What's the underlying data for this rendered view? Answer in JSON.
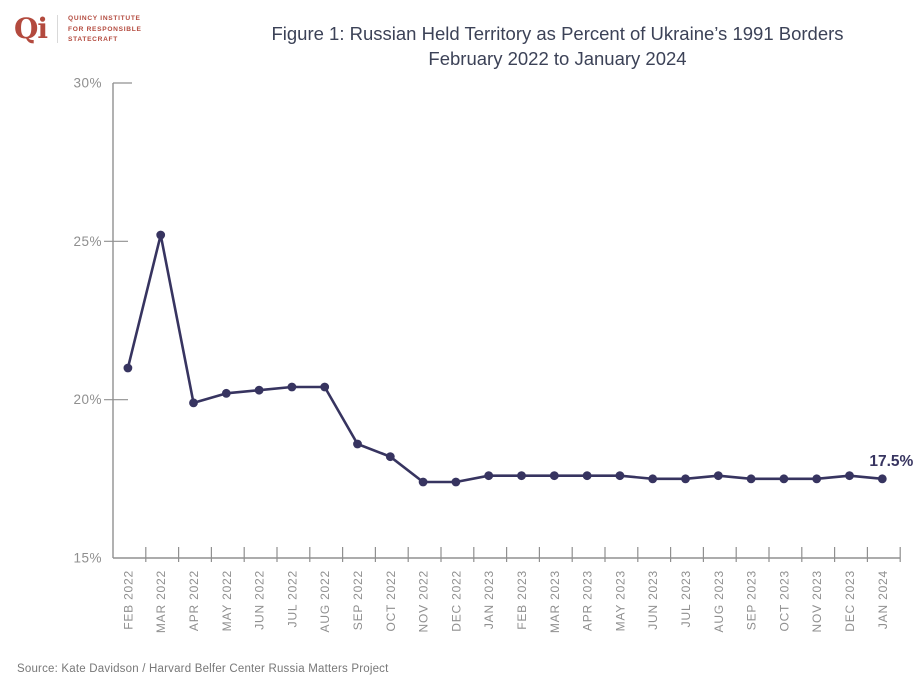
{
  "logo": {
    "monogram": "Qi",
    "org_lines": [
      "QUINCY INSTITUTE",
      "FOR RESPONSIBLE",
      "STATECRAFT"
    ],
    "color": "#b34a3e"
  },
  "title": {
    "line1": "Figure 1: Russian Held Territory as Percent of Ukraine’s 1991 Borders",
    "line2": "February 2022 to January 2024",
    "color": "#3c4257"
  },
  "chart_data": {
    "type": "line",
    "categories": [
      "FEB 2022",
      "MAR 2022",
      "APR 2022",
      "MAY 2022",
      "JUN 2022",
      "JUL 2022",
      "AUG 2022",
      "SEP 2022",
      "OCT 2022",
      "NOV 2022",
      "DEC 2022",
      "JAN 2023",
      "FEB 2023",
      "MAR 2023",
      "APR 2023",
      "MAY 2023",
      "JUN 2023",
      "JUL 2023",
      "AUG 2023",
      "SEP 2023",
      "OCT 2023",
      "NOV 2023",
      "DEC 2023",
      "JAN 2024"
    ],
    "values": [
      21.0,
      25.2,
      19.9,
      20.2,
      20.3,
      20.4,
      20.4,
      18.6,
      18.2,
      17.4,
      17.4,
      17.6,
      17.6,
      17.6,
      17.6,
      17.6,
      17.5,
      17.5,
      17.6,
      17.5,
      17.5,
      17.5,
      17.6,
      17.5
    ],
    "title": "Figure 1: Russian Held Territory as Percent of Ukraine’s 1991 Borders February 2022 to January 2024",
    "xlabel": "",
    "ylabel": "",
    "ylim": [
      15,
      30
    ],
    "yticks": [
      30,
      25,
      20,
      15
    ],
    "ytick_labels": [
      "30%",
      "25%",
      "20%",
      "15%"
    ],
    "grid": false,
    "legend": "none",
    "end_label": "17.5%",
    "line_color": "#373460",
    "axis_color": "#909090",
    "tick_label_color": "#8f8f8f"
  },
  "footer": {
    "source": "Source: Kate Davidson / Harvard Belfer Center Russia Matters Project",
    "color": "#787878"
  }
}
